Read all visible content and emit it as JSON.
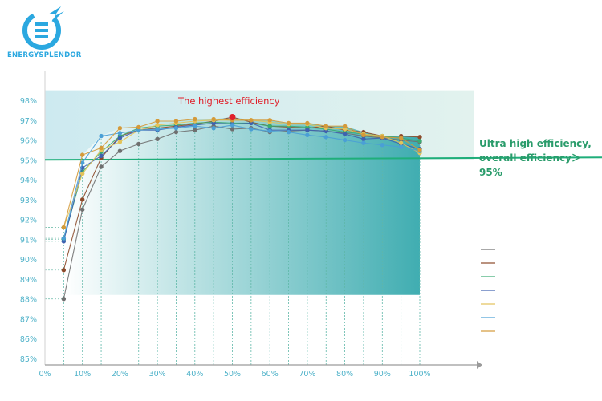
{
  "brand": {
    "name": "ENERGYSPLENDOR",
    "color": "#2ba8e0"
  },
  "annotations": {
    "highest": "The highest efficiency",
    "ultra_line1": "Ultra high efficiency,",
    "ultra_line2": "overall efficiency＞95%"
  },
  "chart_data": {
    "type": "line",
    "title": "",
    "xlabel": "",
    "ylabel": "",
    "xlim": [
      0,
      100
    ],
    "ylim": [
      85,
      98
    ],
    "x_ticks": [
      "0%",
      "10%",
      "20%",
      "30%",
      "40%",
      "50%",
      "60%",
      "70%",
      "80%",
      "90%",
      "100%"
    ],
    "y_ticks": [
      "85%",
      "86%",
      "87%",
      "88%",
      "89%",
      "90%",
      "91%",
      "92%",
      "93%",
      "94%",
      "95%",
      "96%",
      "97%",
      "98%"
    ],
    "threshold": {
      "value": 95,
      "color": "#1fae7a"
    },
    "peak": {
      "x": 50,
      "y": 97.15,
      "color": "#e0202a"
    },
    "legend_placement": "right",
    "x": [
      5,
      10,
      15,
      20,
      25,
      30,
      35,
      40,
      45,
      50,
      55,
      60,
      65,
      70,
      75,
      80,
      85,
      90,
      95,
      100
    ],
    "series": [
      {
        "color": "#6f6f6f",
        "values": [
          88.0,
          92.5,
          94.65,
          95.45,
          95.8,
          96.05,
          96.4,
          96.5,
          96.7,
          96.55,
          96.6,
          96.4,
          96.45,
          96.5,
          96.45,
          96.35,
          96.2,
          96.1,
          96.0,
          95.9
        ]
      },
      {
        "color": "#8c4a2a",
        "values": [
          89.45,
          93.0,
          95.1,
          96.2,
          96.5,
          96.6,
          96.7,
          96.8,
          96.95,
          97.15,
          96.9,
          96.7,
          96.65,
          96.6,
          96.7,
          96.5,
          96.4,
          96.2,
          96.2,
          96.15
        ]
      },
      {
        "color": "#3aaa72",
        "values": [
          91.0,
          94.4,
          95.4,
          96.2,
          96.6,
          96.7,
          96.75,
          96.85,
          96.9,
          96.85,
          96.85,
          96.7,
          96.7,
          96.65,
          96.55,
          96.4,
          96.3,
          96.2,
          96.1,
          95.95
        ]
      },
      {
        "color": "#3e62b0",
        "values": [
          90.9,
          94.6,
          95.2,
          96.1,
          96.5,
          96.5,
          96.65,
          96.75,
          96.85,
          96.8,
          96.85,
          96.5,
          96.5,
          96.5,
          96.45,
          96.3,
          96.05,
          96.1,
          95.8,
          95.55
        ]
      },
      {
        "color": "#e3c35a",
        "values": [
          91.6,
          94.3,
          95.5,
          95.9,
          96.5,
          96.75,
          96.85,
          96.95,
          97.0,
          97.0,
          97.0,
          96.9,
          96.8,
          96.8,
          96.6,
          96.55,
          96.3,
          96.2,
          95.85,
          95.35
        ]
      },
      {
        "color": "#4a9fd6",
        "values": [
          91.05,
          94.85,
          96.2,
          96.35,
          96.5,
          96.55,
          96.6,
          96.7,
          96.6,
          96.75,
          96.55,
          96.45,
          96.4,
          96.25,
          96.15,
          96.0,
          95.85,
          95.75,
          95.65,
          95.45
        ]
      },
      {
        "color": "#d49a3a",
        "values": [
          91.6,
          95.25,
          95.6,
          96.6,
          96.65,
          96.95,
          96.95,
          97.05,
          97.05,
          97.0,
          97.0,
          97.0,
          96.85,
          96.85,
          96.7,
          96.7,
          96.25,
          96.15,
          96.1,
          95.5
        ]
      }
    ]
  }
}
